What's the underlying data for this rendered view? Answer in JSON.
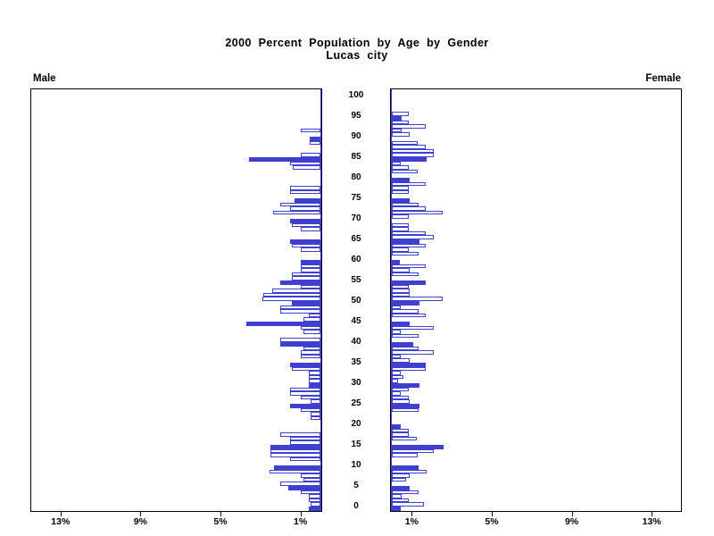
{
  "title": {
    "line1": "2000 Percent Population by Age by Gender",
    "line2": "Lucas city"
  },
  "panel_labels": {
    "left": "Male",
    "right": "Female"
  },
  "colors": {
    "bar_blue": "#4040d0",
    "axis_black": "#000000",
    "background": "#ffffff"
  },
  "chart_data": {
    "type": "bar",
    "variant": "population-pyramid",
    "title": "2000 Percent Population by Age by Gender",
    "subtitle": "Lucas city",
    "unit": "percent of population",
    "orientation": "horizontal, back-to-back panels",
    "xlim_pct": [
      0,
      14.5
    ],
    "x_ticks_pct": [
      1,
      5,
      9,
      13
    ],
    "male_tick_labels": [
      "13%",
      "9%",
      "5%",
      "1%"
    ],
    "female_tick_labels": [
      "1%",
      "5%",
      "9%",
      "13%"
    ],
    "age_min": 0,
    "age_max": 100,
    "age_tick_step": 5,
    "age_tick_labels": [
      "0",
      "5",
      "10",
      "15",
      "20",
      "25",
      "30",
      "35",
      "40",
      "45",
      "50",
      "55",
      "60",
      "65",
      "70",
      "75",
      "80",
      "85",
      "90",
      "95",
      "100"
    ],
    "highlight_rule": "bars for ages divisible by 5 are solid filled blue; all other ages are white with blue outline",
    "series": [
      {
        "name": "Male",
        "side": "left",
        "values": [
          0.6,
          0.5,
          0.6,
          0.6,
          1.0,
          1.6,
          2.0,
          0.85,
          1.0,
          2.55,
          2.3,
          0,
          1.5,
          2.5,
          2.5,
          2.5,
          1.5,
          1.5,
          2.0,
          0,
          0,
          0,
          0.5,
          0.5,
          1.0,
          1.5,
          0.5,
          1.0,
          1.5,
          1.5,
          0.6,
          0.6,
          0.6,
          0.6,
          1.45,
          1.5,
          0,
          1.0,
          1.0,
          0.85,
          2.0,
          2.0,
          0,
          0.85,
          1.0,
          3.7,
          0.85,
          0.6,
          2.0,
          2.0,
          1.45,
          2.9,
          2.85,
          2.4,
          1.0,
          2.0,
          1.45,
          1.45,
          1.0,
          1.0,
          1.0,
          0,
          0,
          1.0,
          1.45,
          1.5,
          0,
          0,
          1.0,
          1.45,
          1.5,
          0,
          2.35,
          1.5,
          2.0,
          1.3,
          0,
          1.5,
          1.5,
          0,
          0,
          0,
          0,
          1.4,
          1.5,
          3.55,
          1.0,
          0,
          0,
          0.55,
          0.55,
          0,
          1.0,
          0,
          0,
          0,
          0,
          0,
          0,
          0,
          0
        ]
      },
      {
        "name": "Female",
        "side": "right",
        "values": [
          0.45,
          1.6,
          0.85,
          0.5,
          1.35,
          0.9,
          0,
          0.7,
          0.9,
          1.75,
          1.35,
          0,
          0,
          1.3,
          2.1,
          2.6,
          0,
          1.25,
          0.85,
          0.85,
          0.45,
          0,
          0,
          0,
          1.35,
          1.4,
          0.9,
          0.85,
          0.45,
          0.85,
          1.4,
          0.3,
          0.6,
          0.45,
          1.7,
          1.7,
          0.9,
          0.45,
          2.1,
          1.35,
          1.05,
          0,
          1.35,
          0.45,
          2.1,
          0.9,
          0,
          1.7,
          1.35,
          0.45,
          1.4,
          2.55,
          0.9,
          0.9,
          0.85,
          1.7,
          0,
          1.35,
          0.9,
          1.7,
          0.4,
          0,
          1.35,
          0.85,
          1.7,
          1.4,
          2.1,
          1.7,
          0.85,
          0.85,
          0,
          0.85,
          2.55,
          1.7,
          1.35,
          0.9,
          0,
          0.85,
          0.85,
          1.7,
          0.9,
          0,
          1.3,
          0.85,
          0.45,
          1.75,
          2.1,
          2.1,
          1.7,
          1.3,
          0,
          0.9,
          0.47,
          1.7,
          0.85,
          0.5,
          0.85,
          0,
          0,
          0,
          0
        ]
      }
    ]
  }
}
